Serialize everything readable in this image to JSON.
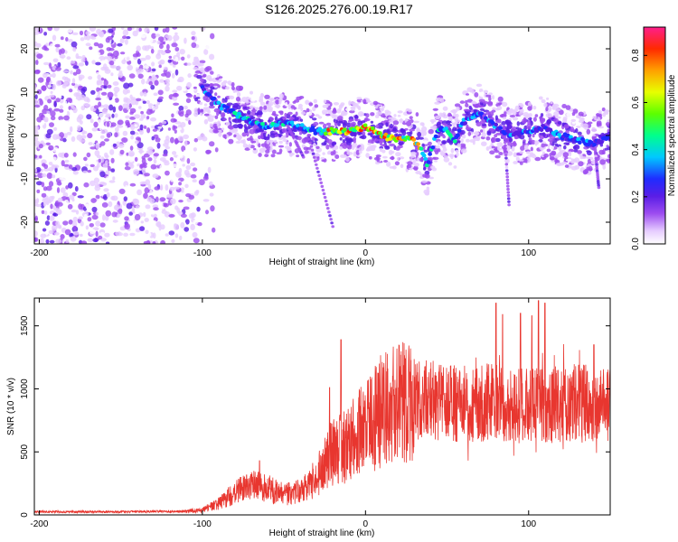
{
  "title": "S126.2025.276.00.19.R17",
  "chart_data": [
    {
      "type": "heatmap",
      "xlabel": "Height of straight line (km)",
      "ylabel": "Frequency (Hz)",
      "xlim": [
        -203,
        150
      ],
      "ylim": [
        -25,
        25
      ],
      "xticks": [
        -200,
        -100,
        0,
        100
      ],
      "yticks": [
        -20,
        -10,
        0,
        10,
        20
      ],
      "colorbar": {
        "label": "Normalized spectral amplitude",
        "range": [
          0,
          0.92
        ],
        "ticks": [
          "0.0",
          "0.2",
          "0.4",
          "0.6",
          "0.8"
        ],
        "colormap": "rainbow"
      },
      "ridge": {
        "x": [
          -100,
          -90,
          -80,
          -70,
          -60,
          -50,
          -40,
          -30,
          -20,
          -10,
          0,
          10,
          20,
          30,
          35,
          38,
          40,
          45,
          50,
          55,
          60,
          70,
          80,
          90,
          100,
          110,
          120,
          130,
          140,
          150
        ],
        "y": [
          11,
          7,
          5,
          3,
          2,
          3,
          2,
          1,
          1,
          1,
          2,
          0,
          -1,
          -1,
          -4,
          -7,
          -4,
          2,
          1,
          -1,
          3,
          5,
          2,
          0,
          1,
          2,
          0,
          -1,
          -2,
          0
        ]
      }
    },
    {
      "type": "line",
      "xlabel": "Height of straight line (km)",
      "ylabel": "SNR (10 * v/v)",
      "xlim": [
        -203,
        150
      ],
      "ylim": [
        0,
        1720
      ],
      "xticks": [
        -200,
        -100,
        0,
        100
      ],
      "yticks": [
        0,
        500,
        1000,
        1500
      ],
      "series": [
        {
          "color": "#e8362f",
          "envelope": {
            "x": [
              -203,
              -150,
              -110,
              -100,
              -90,
              -80,
              -70,
              -60,
              -50,
              -40,
              -30,
              -20,
              -10,
              0,
              10,
              20,
              30,
              40,
              50,
              60,
              70,
              80,
              90,
              100,
              110,
              120,
              130,
              140,
              150
            ],
            "y": [
              25,
              25,
              28,
              40,
              90,
              180,
              230,
              210,
              160,
              190,
              300,
              500,
              560,
              700,
              830,
              880,
              900,
              920,
              900,
              880,
              880,
              900,
              860,
              870,
              860,
              880,
              890,
              880,
              870
            ]
          },
          "spikes": [
            {
              "x": -65,
              "y": 430
            },
            {
              "x": -22,
              "y": 1010
            },
            {
              "x": -15,
              "y": 1390
            },
            {
              "x": 80,
              "y": 1680
            },
            {
              "x": 84,
              "y": 1590
            },
            {
              "x": 95,
              "y": 1600
            },
            {
              "x": 102,
              "y": 1580
            },
            {
              "x": 106,
              "y": 1700
            },
            {
              "x": 110,
              "y": 1680
            },
            {
              "x": 140,
              "y": 1350
            }
          ]
        }
      ]
    }
  ]
}
